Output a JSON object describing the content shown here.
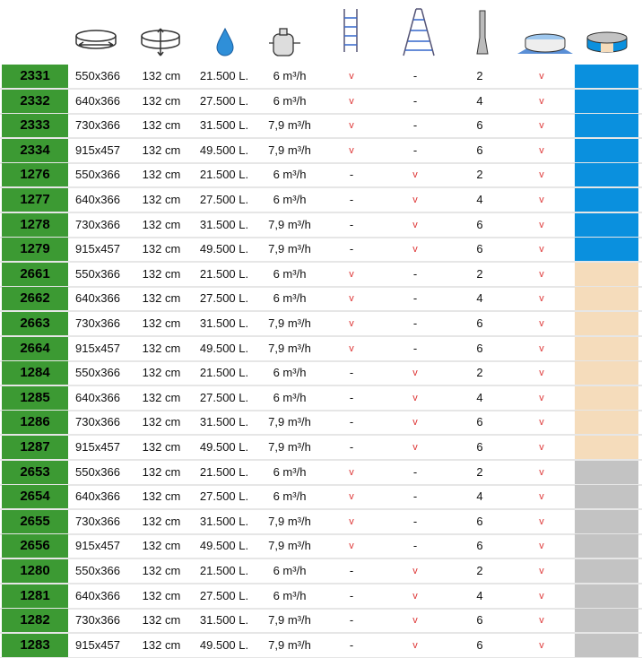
{
  "table": {
    "rows": [
      [
        "2331",
        "550x366",
        "132 cm",
        "21.500 L.",
        "6 m³/h",
        "v",
        "-",
        "2",
        "v"
      ],
      [
        "2332",
        "640x366",
        "132 cm",
        "27.500 L.",
        "6 m³/h",
        "v",
        "-",
        "4",
        "v"
      ],
      [
        "2333",
        "730x366",
        "132 cm",
        "31.500 L.",
        "7,9 m³/h",
        "v",
        "-",
        "6",
        "v"
      ],
      [
        "2334",
        "915x457",
        "132 cm",
        "49.500 L.",
        "7,9 m³/h",
        "v",
        "-",
        "6",
        "v"
      ],
      [
        "1276",
        "550x366",
        "132 cm",
        "21.500 L.",
        "6 m³/h",
        "-",
        "v",
        "2",
        "v"
      ],
      [
        "1277",
        "640x366",
        "132 cm",
        "27.500 L.",
        "6 m³/h",
        "-",
        "v",
        "4",
        "v"
      ],
      [
        "1278",
        "730x366",
        "132 cm",
        "31.500 L.",
        "7,9 m³/h",
        "-",
        "v",
        "6",
        "v"
      ],
      [
        "1279",
        "915x457",
        "132 cm",
        "49.500 L.",
        "7,9 m³/h",
        "-",
        "v",
        "6",
        "v"
      ],
      [
        "2661",
        "550x366",
        "132 cm",
        "21.500 L.",
        "6 m³/h",
        "v",
        "-",
        "2",
        "v"
      ],
      [
        "2662",
        "640x366",
        "132 cm",
        "27.500 L.",
        "6 m³/h",
        "v",
        "-",
        "4",
        "v"
      ],
      [
        "2663",
        "730x366",
        "132 cm",
        "31.500 L.",
        "7,9 m³/h",
        "v",
        "-",
        "6",
        "v"
      ],
      [
        "2664",
        "915x457",
        "132 cm",
        "49.500 L.",
        "7,9 m³/h",
        "v",
        "-",
        "6",
        "v"
      ],
      [
        "1284",
        "550x366",
        "132 cm",
        "21.500 L.",
        "6 m³/h",
        "-",
        "v",
        "2",
        "v"
      ],
      [
        "1285",
        "640x366",
        "132 cm",
        "27.500 L.",
        "6 m³/h",
        "-",
        "v",
        "4",
        "v"
      ],
      [
        "1286",
        "730x366",
        "132 cm",
        "31.500 L.",
        "7,9 m³/h",
        "-",
        "v",
        "6",
        "v"
      ],
      [
        "1287",
        "915x457",
        "132 cm",
        "49.500 L.",
        "7,9 m³/h",
        "-",
        "v",
        "6",
        "v"
      ],
      [
        "2653",
        "550x366",
        "132 cm",
        "21.500 L.",
        "6 m³/h",
        "v",
        "-",
        "2",
        "v"
      ],
      [
        "2654",
        "640x366",
        "132 cm",
        "27.500 L.",
        "6 m³/h",
        "v",
        "-",
        "4",
        "v"
      ],
      [
        "2655",
        "730x366",
        "132 cm",
        "31.500 L.",
        "7,9 m³/h",
        "v",
        "-",
        "6",
        "v"
      ],
      [
        "2656",
        "915x457",
        "132 cm",
        "49.500 L.",
        "7,9 m³/h",
        "v",
        "-",
        "6",
        "v"
      ],
      [
        "1280",
        "550x366",
        "132 cm",
        "21.500 L.",
        "6 m³/h",
        "-",
        "v",
        "2",
        "v"
      ],
      [
        "1281",
        "640x366",
        "132 cm",
        "27.500 L.",
        "6 m³/h",
        "-",
        "v",
        "4",
        "v"
      ],
      [
        "1282",
        "730x366",
        "132 cm",
        "31.500 L.",
        "7,9 m³/h",
        "-",
        "v",
        "6",
        "v"
      ],
      [
        "1283",
        "915x457",
        "132 cm",
        "49.500 L.",
        "7,9 m³/h",
        "-",
        "v",
        "6",
        "v"
      ]
    ],
    "row_colors": [
      "#0a90de",
      "#0a90de",
      "#0a90de",
      "#0a90de",
      "#0a90de",
      "#0a90de",
      "#0a90de",
      "#0a90de",
      "#f5dcbb",
      "#f5dcbb",
      "#f5dcbb",
      "#f5dcbb",
      "#f5dcbb",
      "#f5dcbb",
      "#f5dcbb",
      "#f5dcbb",
      "#c3c3c3",
      "#c3c3c3",
      "#c3c3c3",
      "#c3c3c3",
      "#c3c3c3",
      "#c3c3c3",
      "#c3c3c3",
      "#c3c3c3"
    ]
  }
}
